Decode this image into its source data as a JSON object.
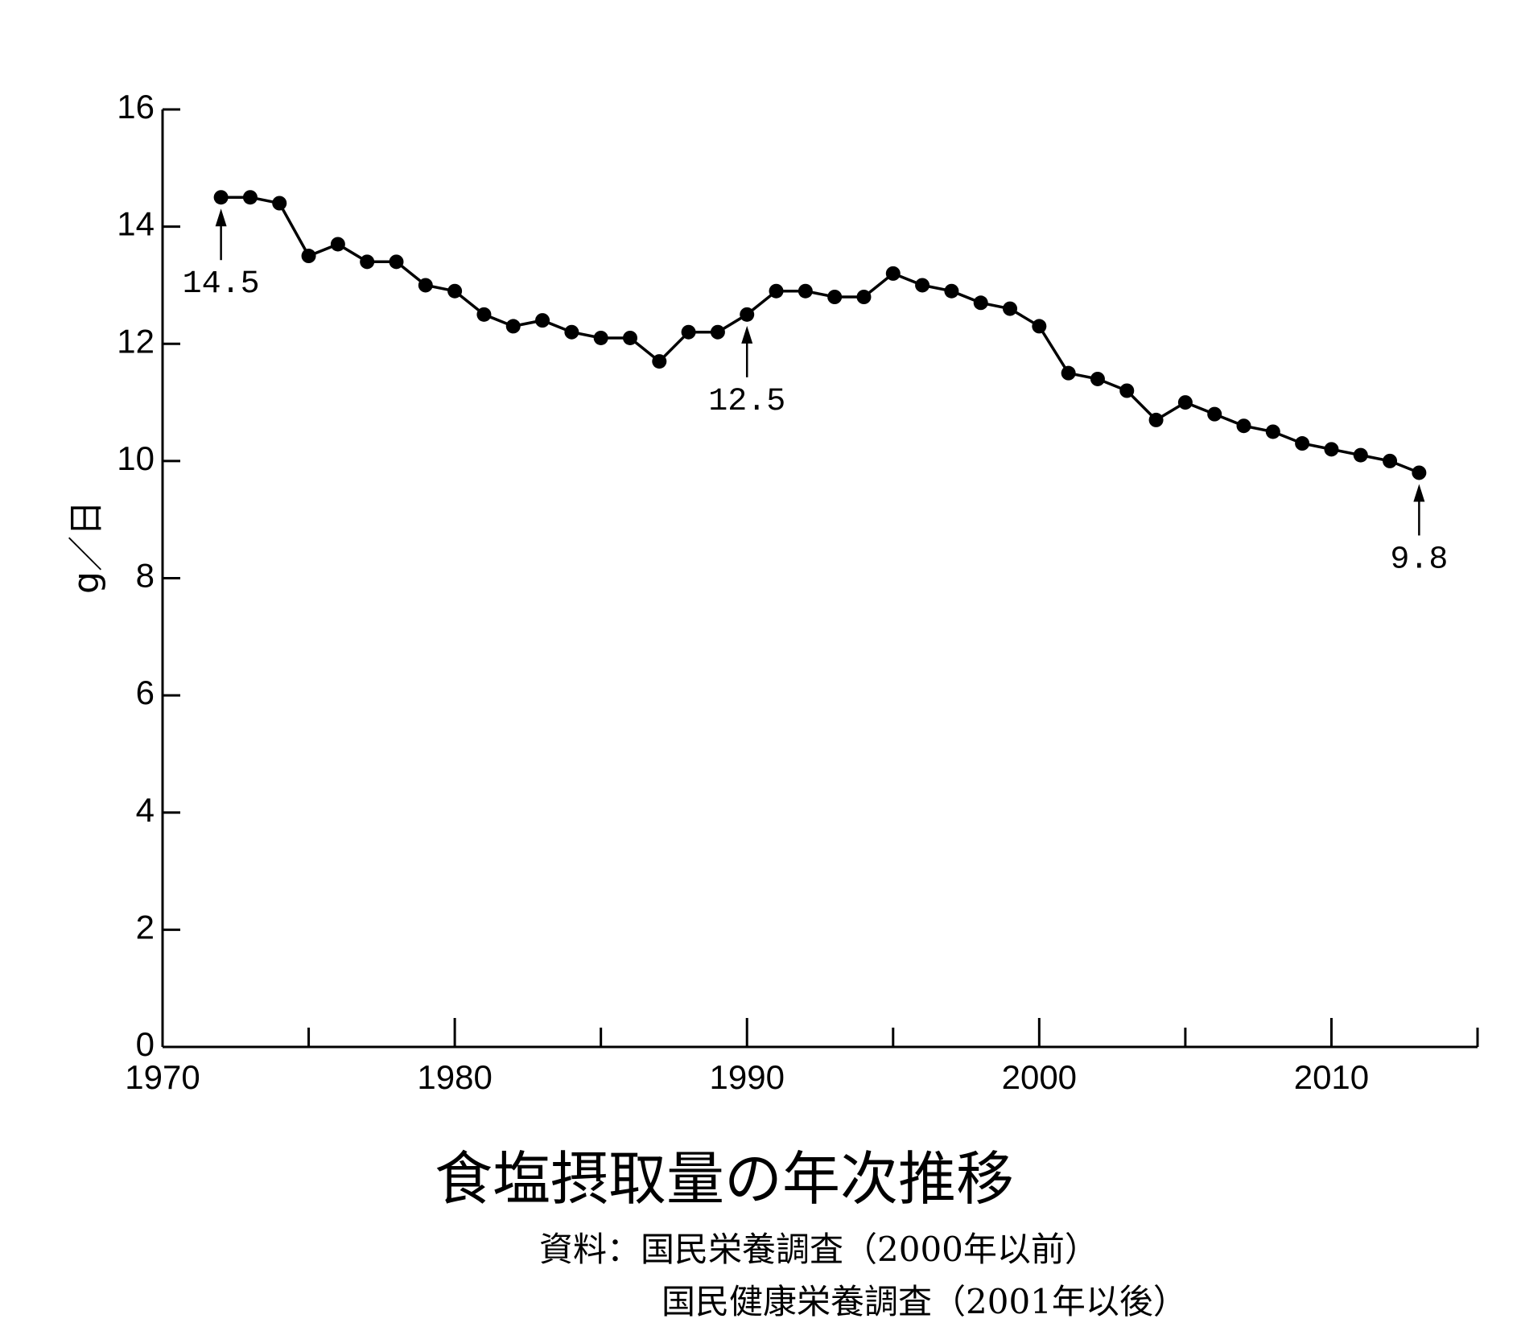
{
  "chart_data": {
    "type": "line",
    "title": "食塩摂取量の年次推移",
    "ylabel": "g／日",
    "xlabel": "",
    "xlim": [
      1970,
      2015
    ],
    "ylim": [
      0,
      16
    ],
    "x_ticks": [
      1970,
      1980,
      1990,
      2000,
      2010
    ],
    "y_ticks": [
      0,
      2,
      4,
      6,
      8,
      10,
      12,
      14,
      16
    ],
    "grid": false,
    "series": [
      {
        "x": [
          1972,
          1973,
          1974,
          1975,
          1976,
          1977,
          1978,
          1979,
          1980,
          1981,
          1982,
          1983,
          1984,
          1985,
          1986,
          1987,
          1988,
          1989,
          1990,
          1991,
          1992,
          1993,
          1994,
          1995,
          1996,
          1997,
          1998,
          1999,
          2000,
          2001,
          2002,
          2003,
          2004,
          2005,
          2006,
          2007,
          2008,
          2009,
          2010,
          2011,
          2012,
          2013
        ],
        "values": [
          14.5,
          14.5,
          14.4,
          13.5,
          13.7,
          13.4,
          13.4,
          13.0,
          12.9,
          12.5,
          12.3,
          12.4,
          12.2,
          12.1,
          12.1,
          11.7,
          12.2,
          12.2,
          12.5,
          12.9,
          12.9,
          12.8,
          12.8,
          13.2,
          13.0,
          12.9,
          12.7,
          12.6,
          12.3,
          11.5,
          11.4,
          11.2,
          10.7,
          11.0,
          10.8,
          10.6,
          10.5,
          10.3,
          10.2,
          10.1,
          10.0,
          9.8
        ]
      }
    ],
    "annotations": [
      {
        "x": 1972,
        "y": 14.5,
        "text": "14.5",
        "direction": "below"
      },
      {
        "x": 1990,
        "y": 12.5,
        "text": "12.5",
        "direction": "below"
      },
      {
        "x": 2013,
        "y": 9.8,
        "text": "9.8",
        "direction": "below"
      }
    ],
    "source_lines": [
      "資料：国民栄養調査（2000年以前）",
      "国民健康栄養調査（2001年以後）"
    ]
  }
}
